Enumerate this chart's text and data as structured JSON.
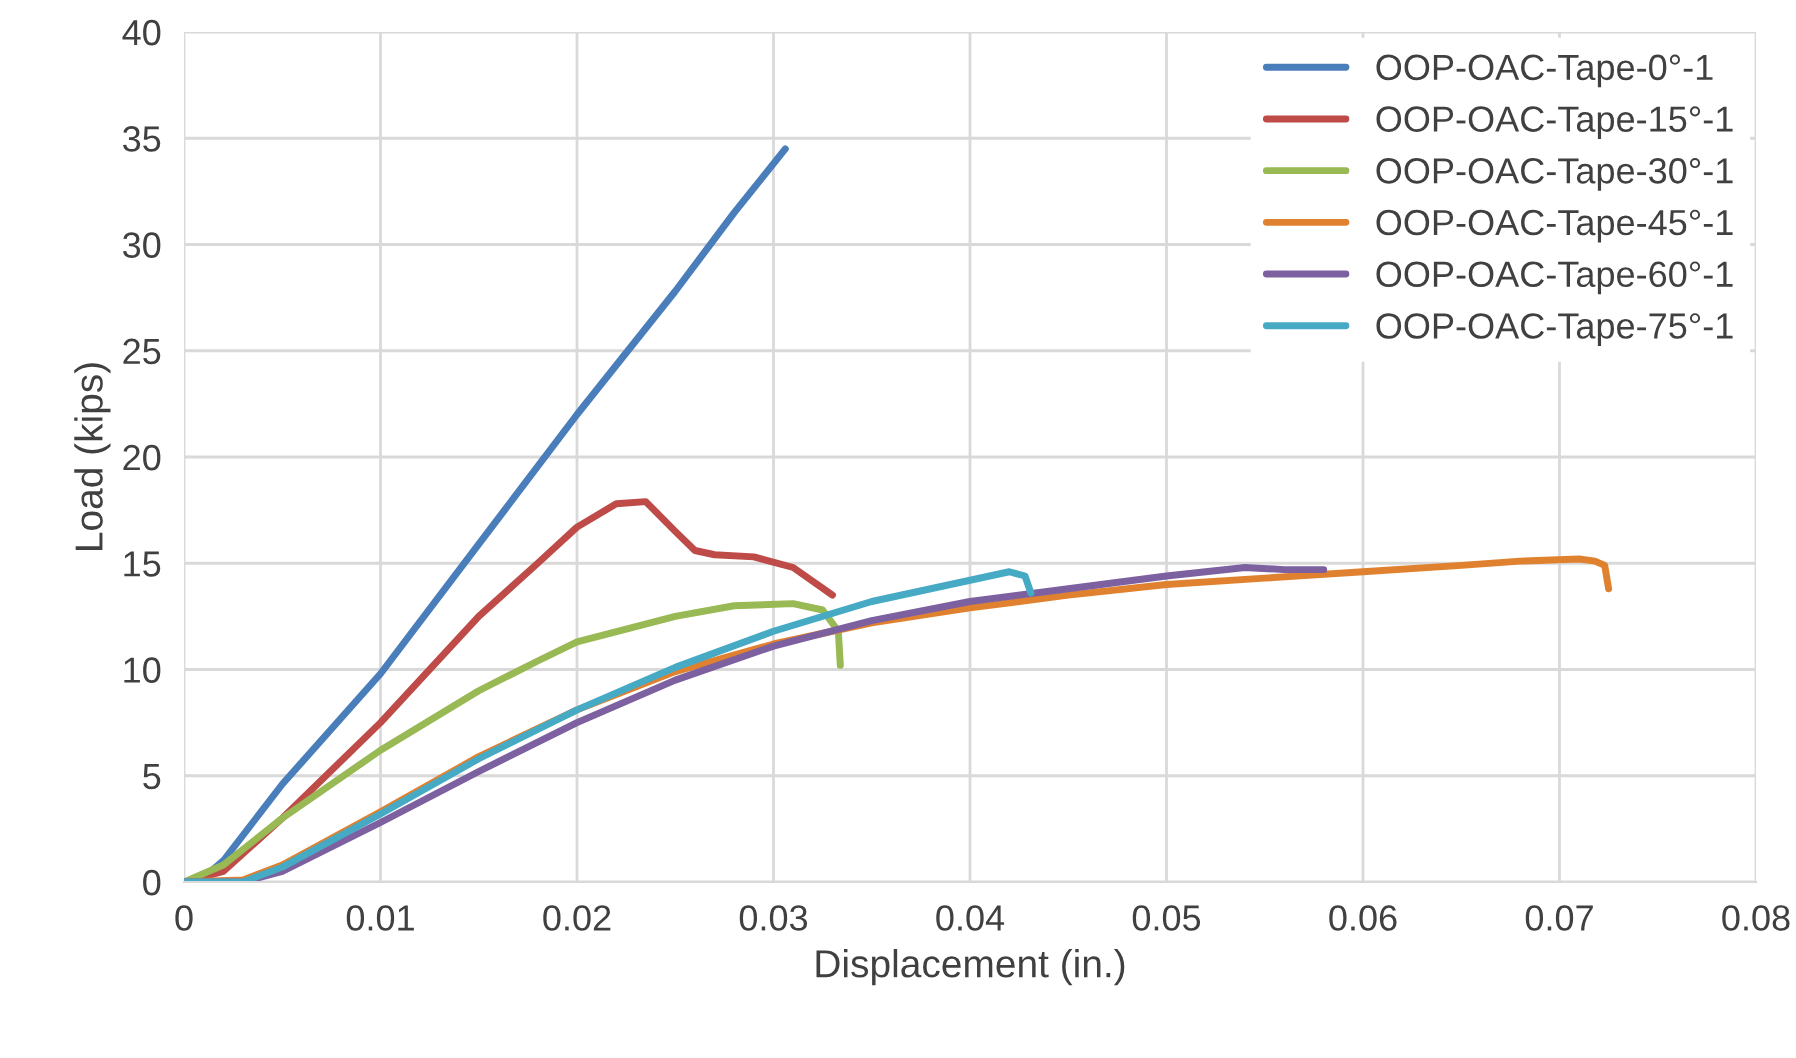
{
  "chart_data": {
    "type": "line",
    "xlabel": "Displacement (in.)",
    "ylabel": "Load (kips)",
    "xlim": [
      0,
      0.08
    ],
    "xticks": [
      {
        "value": 0,
        "label": "0"
      },
      0.01,
      0.02,
      0.03,
      0.04,
      0.05,
      0.06,
      0.07,
      0.08
    ],
    "ylim": [
      0,
      40
    ],
    "yticks": [
      0,
      5,
      10,
      15,
      20,
      25,
      30,
      35,
      40
    ],
    "grid": true,
    "legend": "top right",
    "marker": "none",
    "line_style": "solid",
    "series": [
      {
        "name": "OOP-OAC-Tape-0°-1",
        "color": "#4a7ebb",
        "x": [
          0,
          0.001,
          0.002,
          0.005,
          0.01,
          0.015,
          0.02,
          0.025,
          0.028,
          0.0306
        ],
        "values": [
          0,
          0.2,
          1,
          4.6,
          9.8,
          15.9,
          22,
          27.8,
          31.5,
          34.5
        ]
      },
      {
        "name": "OOP-OAC-Tape-15°-1",
        "color": "#be4b48",
        "x": [
          0,
          0.002,
          0.005,
          0.01,
          0.015,
          0.018,
          0.02,
          0.022,
          0.0235,
          0.025,
          0.026,
          0.027,
          0.029,
          0.031,
          0.033
        ],
        "values": [
          0,
          0.5,
          3,
          7.5,
          12.5,
          15,
          16.7,
          17.8,
          17.9,
          16.5,
          15.6,
          15.4,
          15.3,
          14.8,
          13.5
        ]
      },
      {
        "name": "OOP-OAC-Tape-30°-1",
        "color": "#98b954",
        "x": [
          0,
          0.002,
          0.005,
          0.01,
          0.015,
          0.018,
          0.02,
          0.025,
          0.028,
          0.031,
          0.0325,
          0.0333,
          0.0334
        ],
        "values": [
          0,
          0.8,
          3,
          6.2,
          9,
          10.4,
          11.3,
          12.5,
          13,
          13.1,
          12.8,
          11.8,
          10.2
        ]
      },
      {
        "name": "OOP-OAC-Tape-45°-1",
        "color": "#e0812f",
        "x": [
          0,
          0.003,
          0.005,
          0.01,
          0.015,
          0.02,
          0.025,
          0.03,
          0.035,
          0.04,
          0.045,
          0.05,
          0.055,
          0.06,
          0.065,
          0.068,
          0.071,
          0.0718,
          0.0723,
          0.0725
        ],
        "values": [
          0,
          0.1,
          0.8,
          3.3,
          5.9,
          8.1,
          9.9,
          11.2,
          12.2,
          12.9,
          13.5,
          14,
          14.3,
          14.6,
          14.9,
          15.1,
          15.2,
          15.1,
          14.9,
          13.8
        ]
      },
      {
        "name": "OOP-OAC-Tape-60°-1",
        "color": "#7d60a0",
        "x": [
          0,
          0.003,
          0.005,
          0.01,
          0.015,
          0.02,
          0.025,
          0.03,
          0.035,
          0.04,
          0.045,
          0.05,
          0.054,
          0.056,
          0.058
        ],
        "values": [
          0,
          0,
          0.5,
          2.8,
          5.2,
          7.5,
          9.5,
          11.1,
          12.3,
          13.2,
          13.8,
          14.4,
          14.8,
          14.7,
          14.7
        ]
      },
      {
        "name": "OOP-OAC-Tape-75°-1",
        "color": "#46aac5",
        "x": [
          0,
          0.003,
          0.005,
          0.01,
          0.015,
          0.02,
          0.025,
          0.03,
          0.035,
          0.04,
          0.042,
          0.0428,
          0.0431
        ],
        "values": [
          0,
          0,
          0.7,
          3.2,
          5.8,
          8.1,
          10.1,
          11.8,
          13.2,
          14.2,
          14.6,
          14.4,
          13.6
        ]
      }
    ]
  }
}
